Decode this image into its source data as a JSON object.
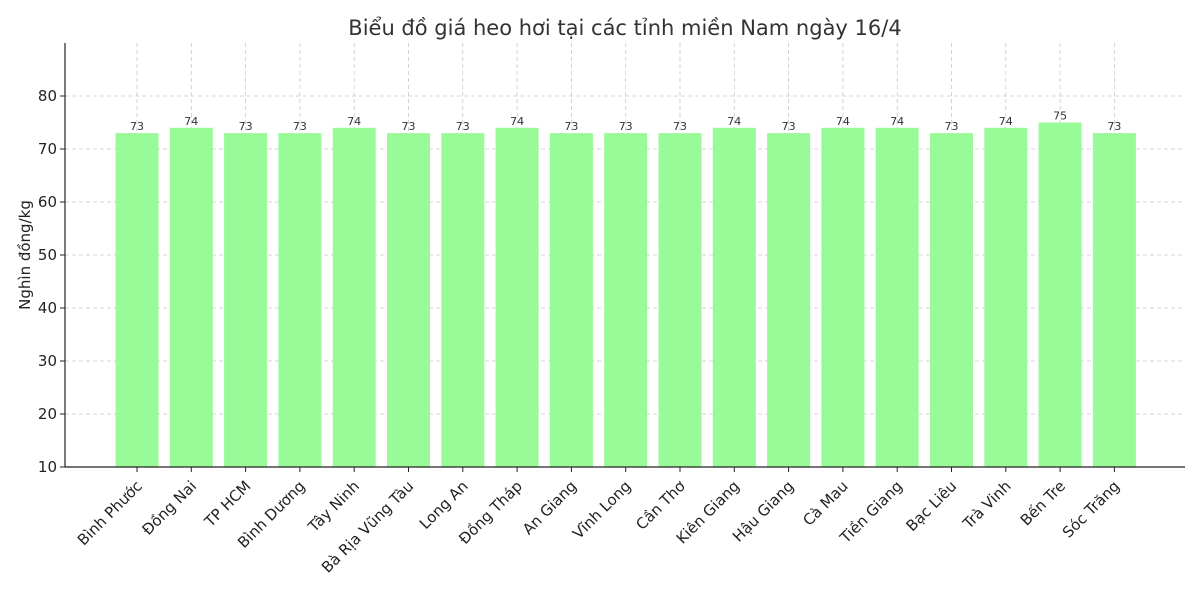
{
  "chart_data": {
    "type": "bar",
    "title": "Biểu đồ giá heo hơi tại các tỉnh miền Nam ngày 16/4",
    "xlabel": "",
    "ylabel": "Nghìn đồng/kg",
    "ylim": [
      10,
      90
    ],
    "yticks": [
      "10",
      "20",
      "30",
      "40",
      "50",
      "60",
      "70",
      "80"
    ],
    "grid": true,
    "bar_color": "#98fb98",
    "categories": [
      "Bình Phước",
      "Đồng Nai",
      "TP HCM",
      "Bình Dương",
      "Tây Ninh",
      "Bà Rịa  Vũng Tàu",
      "Long An",
      "Đồng Tháp",
      "An Giang",
      "Vĩnh Long",
      "Cần Thơ",
      "Kiên Giang",
      "Hậu Giang",
      "Cà Mau",
      "Tiền Giang",
      "Bạc Liêu",
      "Trà Vinh",
      "Bến Tre",
      "Sóc Trăng"
    ],
    "values": [
      73,
      74,
      73,
      73,
      74,
      73,
      73,
      74,
      73,
      73,
      73,
      74,
      73,
      74,
      74,
      73,
      74,
      75,
      73
    ],
    "value_labels": [
      "73",
      "74",
      "73",
      "73",
      "74",
      "73",
      "73",
      "74",
      "73",
      "73",
      "73",
      "74",
      "73",
      "74",
      "74",
      "73",
      "74",
      "75",
      "73"
    ]
  }
}
